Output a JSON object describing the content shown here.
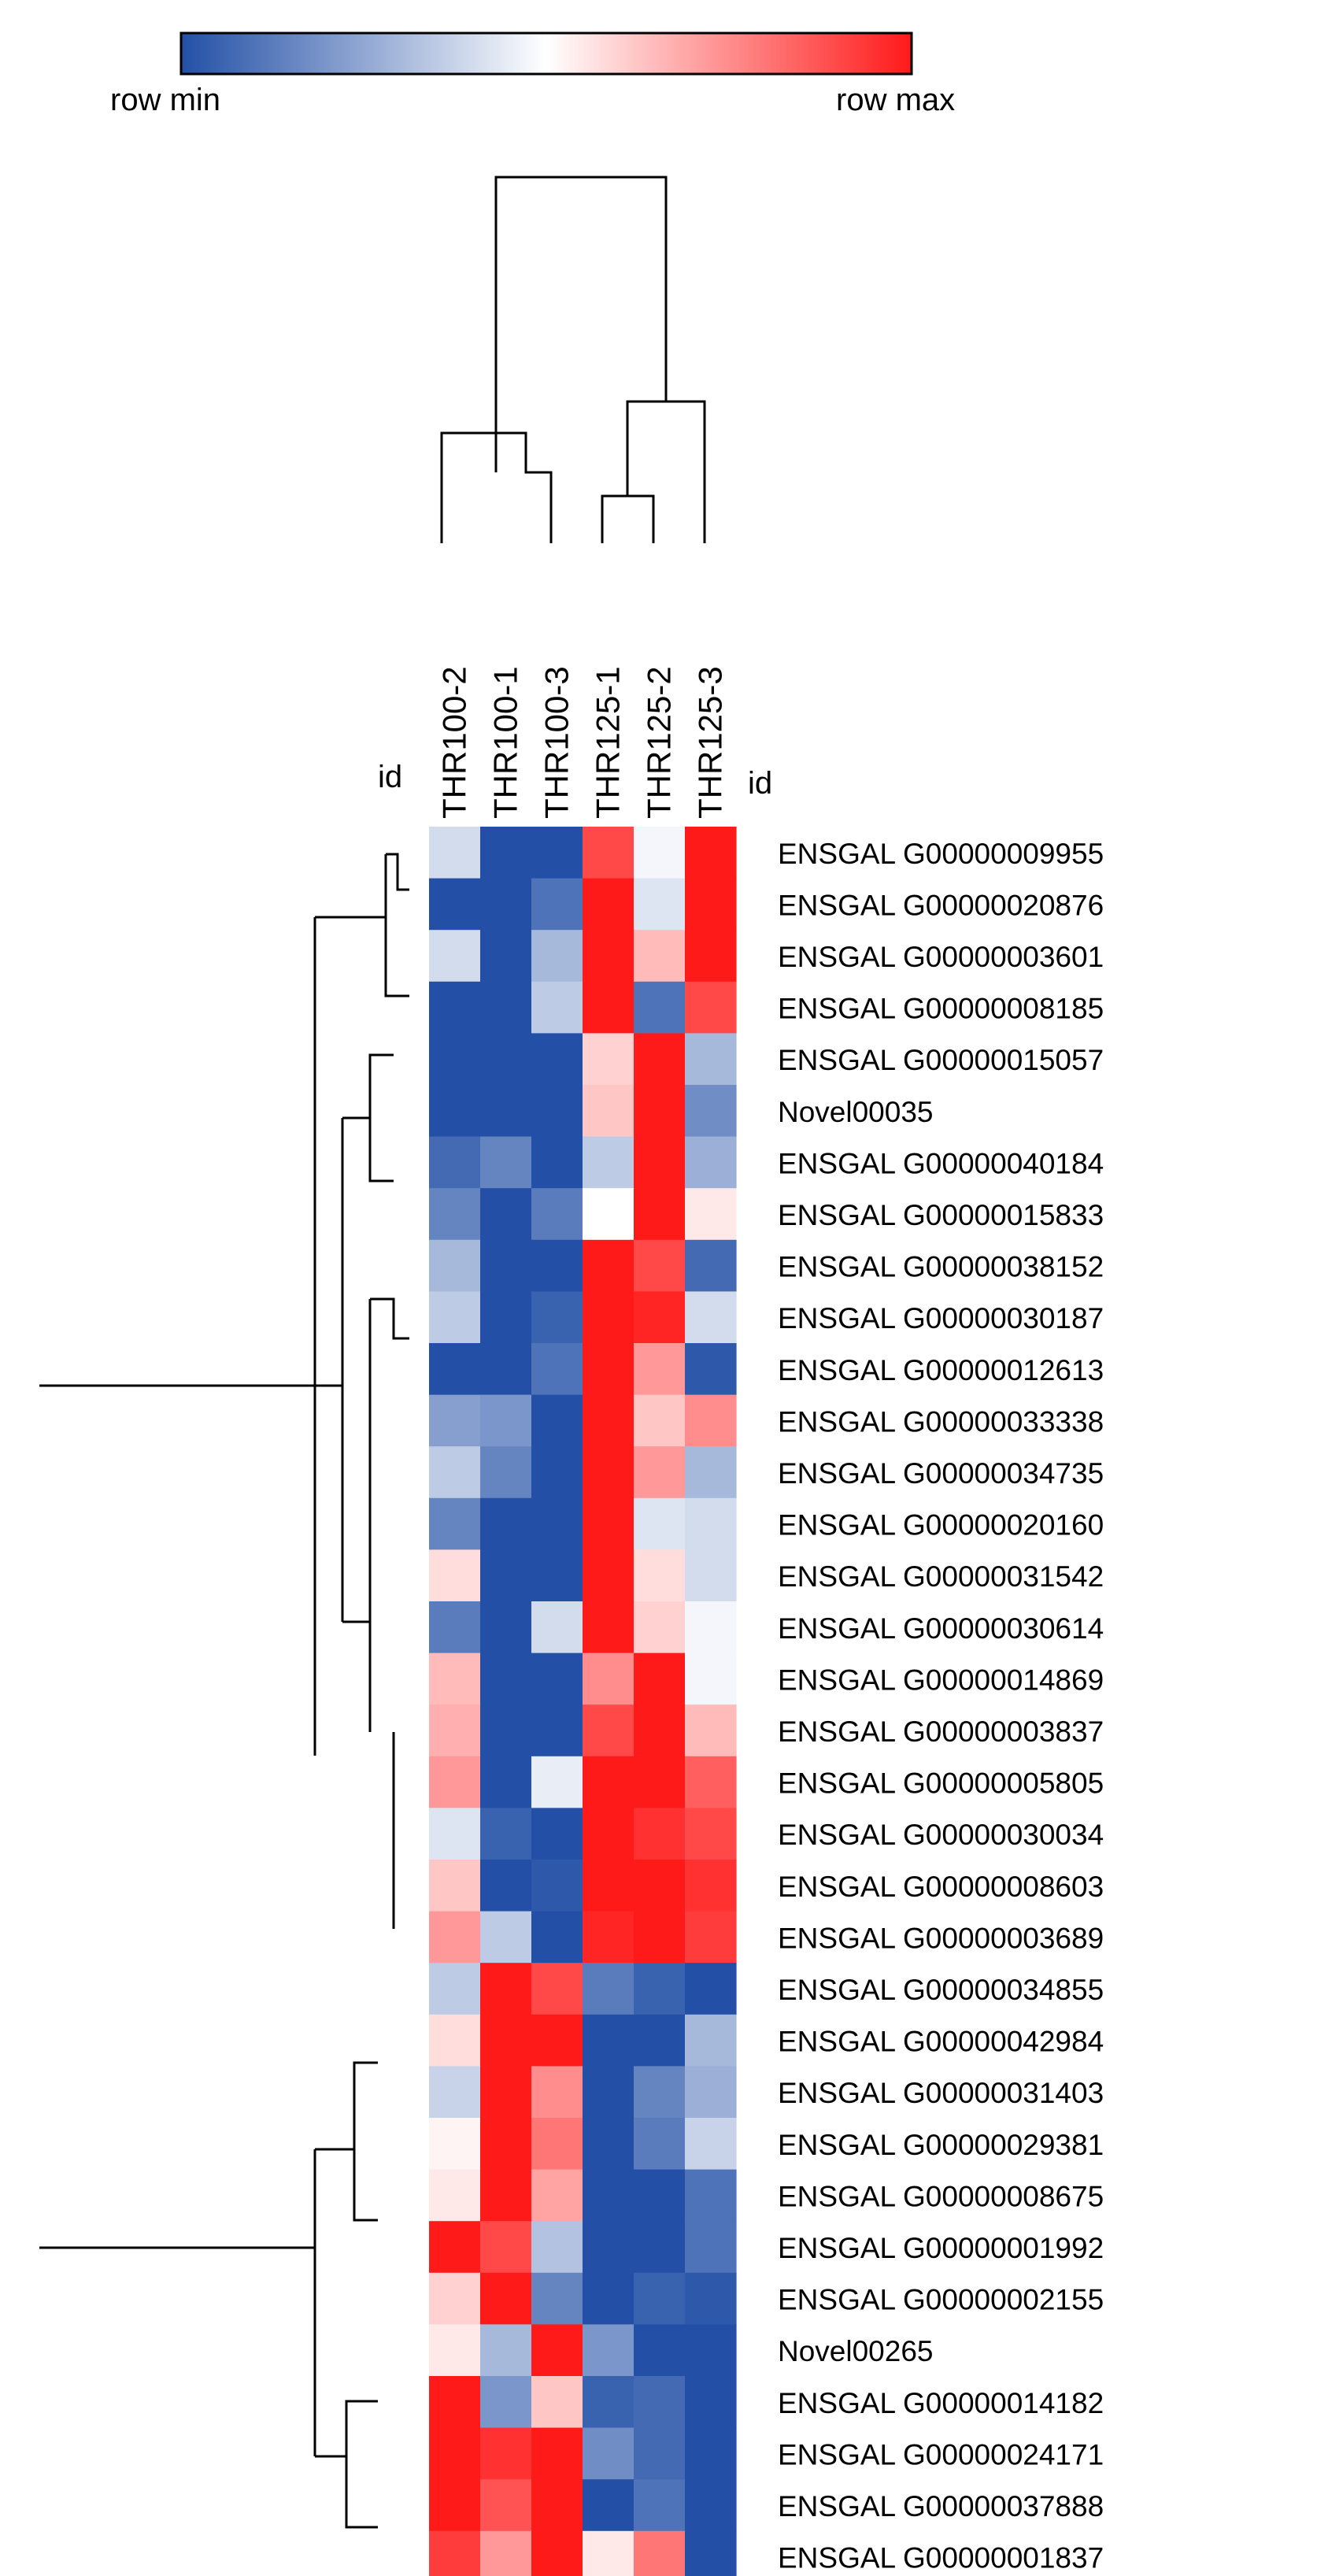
{
  "chart_data": {
    "type": "heatmap",
    "title": "",
    "xlabel": "",
    "ylabel": "",
    "legend": {
      "min_label": "row min",
      "max_label": "row max",
      "placement": "top-left",
      "colors": [
        "#2350a6",
        "#ffffff",
        "#ff1a1a"
      ]
    },
    "id_label": "id",
    "value_range": [
      -1,
      1
    ],
    "columns": [
      "THR100-2",
      "THR100-1",
      "THR100-3",
      "THR125-1",
      "THR125-2",
      "THR125-3"
    ],
    "rows": [
      "ENSGAL G00000009955",
      "ENSGAL G00000020876",
      "ENSGAL G00000003601",
      "ENSGAL G00000008185",
      "ENSGAL G00000015057",
      "Novel00035",
      "ENSGAL G00000040184",
      "ENSGAL G00000015833",
      "ENSGAL G00000038152",
      "ENSGAL G00000030187",
      "ENSGAL G00000012613",
      "ENSGAL G00000033338",
      "ENSGAL G00000034735",
      "ENSGAL G00000020160",
      "ENSGAL G00000031542",
      "ENSGAL G00000030614",
      "ENSGAL G00000014869",
      "ENSGAL G00000003837",
      "ENSGAL G00000005805",
      "ENSGAL G00000030034",
      "ENSGAL G00000008603",
      "ENSGAL G00000003689",
      "ENSGAL G00000034855",
      "ENSGAL G00000042984",
      "ENSGAL G00000031403",
      "ENSGAL G00000029381",
      "ENSGAL G00000008675",
      "ENSGAL G00000001992",
      "ENSGAL G00000002155",
      "Novel00265",
      "ENSGAL G00000014182",
      "ENSGAL G00000024171",
      "ENSGAL G00000037888",
      "ENSGAL G00000001837"
    ],
    "values": [
      [
        -0.2,
        -1,
        -1,
        0.8,
        -0.05,
        1
      ],
      [
        -1,
        -1,
        -0.8,
        1,
        -0.15,
        1
      ],
      [
        -0.2,
        -1,
        -0.4,
        1,
        0.3,
        1
      ],
      [
        -1,
        -1,
        -0.3,
        1,
        -0.8,
        0.8
      ],
      [
        -1,
        -1,
        -1,
        0.2,
        1,
        -0.4
      ],
      [
        -1,
        -1,
        -1,
        0.25,
        1,
        -0.65
      ],
      [
        -0.85,
        -0.7,
        -1,
        -0.3,
        1,
        -0.45
      ],
      [
        -0.7,
        -1,
        -0.75,
        0,
        1,
        0.1
      ],
      [
        -0.4,
        -1,
        -1,
        1,
        0.8,
        -0.85
      ],
      [
        -0.3,
        -1,
        -0.9,
        1,
        0.95,
        -0.2
      ],
      [
        -1,
        -1,
        -0.8,
        1,
        0.45,
        -0.95
      ],
      [
        -0.55,
        -0.6,
        -1,
        1,
        0.25,
        0.5
      ],
      [
        -0.3,
        -0.7,
        -1,
        1,
        0.45,
        -0.4
      ],
      [
        -0.7,
        -1,
        -1,
        1,
        -0.15,
        -0.2
      ],
      [
        0.15,
        -1,
        -1,
        1,
        0.15,
        -0.2
      ],
      [
        -0.75,
        -1,
        -0.2,
        1,
        0.2,
        -0.05
      ],
      [
        0.3,
        -1,
        -1,
        0.5,
        1,
        -0.05
      ],
      [
        0.35,
        -1,
        -1,
        0.8,
        1,
        0.3
      ],
      [
        0.45,
        -1,
        -0.1,
        1,
        1,
        0.7
      ],
      [
        -0.15,
        -0.9,
        -1,
        1,
        0.9,
        0.8
      ],
      [
        0.25,
        -1,
        -0.95,
        1,
        1,
        0.9
      ],
      [
        0.45,
        -0.3,
        -1,
        0.95,
        1,
        0.85
      ],
      [
        -0.3,
        1,
        0.8,
        -0.75,
        -0.9,
        -1
      ],
      [
        0.15,
        1,
        1,
        -1,
        -1,
        -0.4
      ],
      [
        -0.25,
        1,
        0.5,
        -1,
        -0.7,
        -0.45
      ],
      [
        0.05,
        1,
        0.6,
        -1,
        -0.75,
        -0.25
      ],
      [
        0.1,
        1,
        0.4,
        -1,
        -1,
        -0.8
      ],
      [
        1,
        0.8,
        -0.35,
        -1,
        -1,
        -0.8
      ],
      [
        0.2,
        1,
        -0.7,
        -1,
        -0.9,
        -0.95
      ],
      [
        0.1,
        -0.4,
        1,
        -0.6,
        -1,
        -1
      ],
      [
        1,
        -0.6,
        0.25,
        -0.9,
        -0.85,
        -1
      ],
      [
        1,
        0.9,
        1,
        -0.65,
        -0.85,
        -1
      ],
      [
        1,
        0.75,
        1,
        -1,
        -0.8,
        -1
      ],
      [
        0.85,
        0.45,
        1,
        0.1,
        0.6,
        -1
      ]
    ]
  }
}
